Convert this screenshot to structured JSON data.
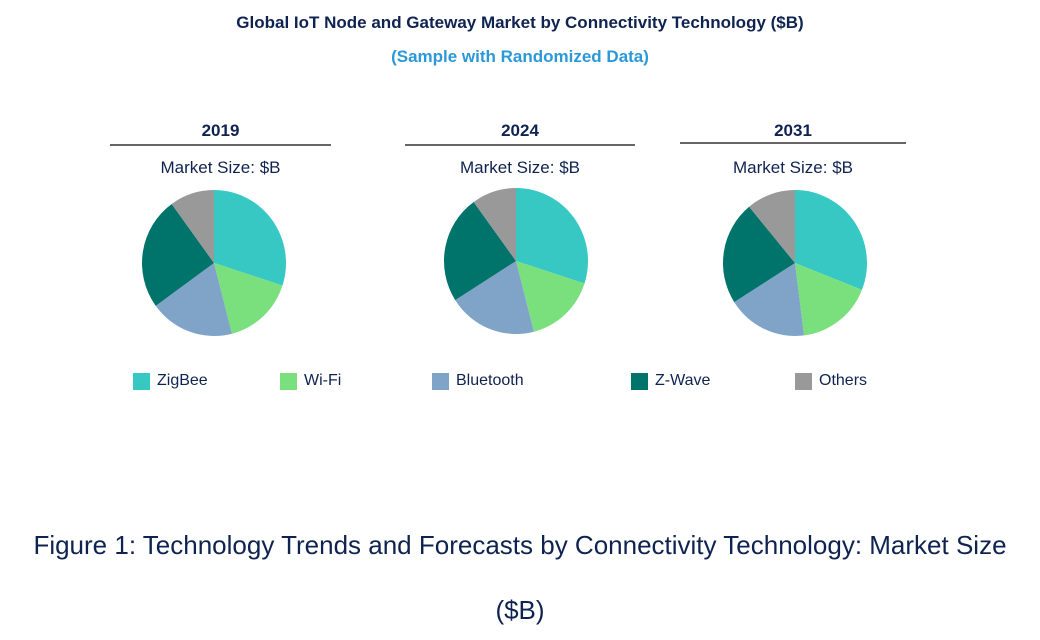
{
  "chart_data": {
    "type": "pie",
    "title": "Global IoT Node and Gateway Market by Connectivity Technology ($B)",
    "subtitle": "(Sample with Randomized Data)",
    "categories": [
      "ZigBee",
      "Wi-Fi",
      "Bluetooth",
      "Z-Wave",
      "Others"
    ],
    "colors": [
      "#38C8C4",
      "#7AE07E",
      "#7FA4C8",
      "#00736B",
      "#999999"
    ],
    "legend_position": "bottom",
    "pies": [
      {
        "year": "2019",
        "label": "Market Size: $B",
        "values": [
          30,
          16,
          19,
          25,
          10
        ]
      },
      {
        "year": "2024",
        "label": "Market Size: $B",
        "values": [
          30,
          16,
          20,
          24,
          10
        ]
      },
      {
        "year": "2031",
        "label": "Market Size: $B",
        "values": [
          31,
          17,
          18,
          23,
          11
        ]
      }
    ]
  },
  "caption_line1": "Figure 1: Technology Trends and Forecasts by Connectivity Technology: Market Size",
  "caption_line2": "($B)"
}
